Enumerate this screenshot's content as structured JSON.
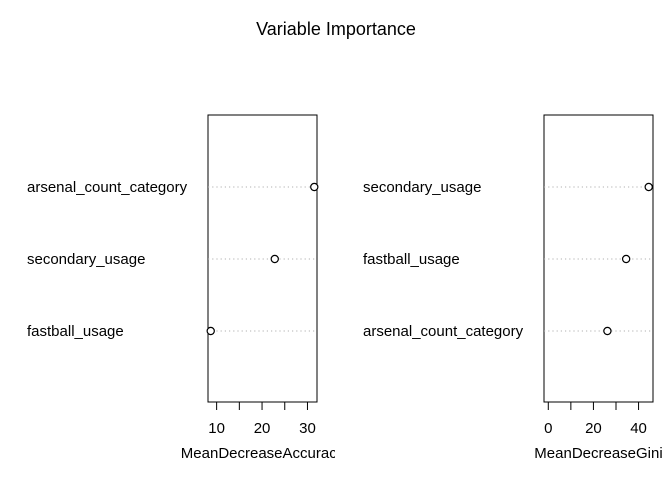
{
  "title": "Variable Importance",
  "chart_data": [
    {
      "type": "scatter",
      "variant": "dot-chart",
      "categories": [
        "arsenal_count_category",
        "secondary_usage",
        "fastball_usage"
      ],
      "values": [
        31.5,
        22.8,
        8.7
      ],
      "xlabel": "MeanDecreaseAccuracy",
      "ticks": [
        10,
        15,
        20,
        25,
        30
      ],
      "tick_labels": [
        "10",
        "",
        "20",
        "",
        "30"
      ],
      "xlim": [
        8.1,
        32.1
      ],
      "grid": "dotted guides per category",
      "legend": "none"
    },
    {
      "type": "scatter",
      "variant": "dot-chart",
      "categories": [
        "secondary_usage",
        "fastball_usage",
        "arsenal_count_category"
      ],
      "values": [
        44.5,
        34.5,
        26.2
      ],
      "xlabel": "MeanDecreaseGini",
      "ticks": [
        0,
        10,
        20,
        30,
        40
      ],
      "tick_labels": [
        "0",
        "",
        "20",
        "",
        "40"
      ],
      "xlim": [
        -1.9,
        46.4
      ],
      "grid": "dotted guides per category",
      "legend": "none"
    }
  ]
}
